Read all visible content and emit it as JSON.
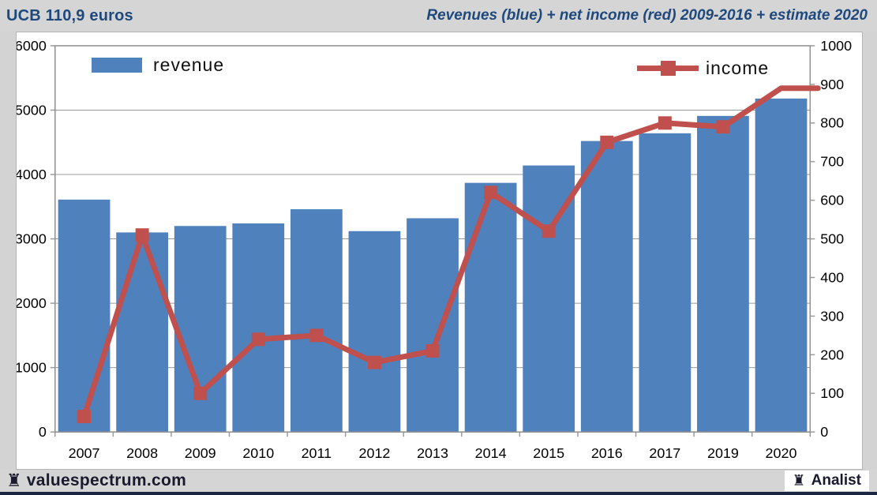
{
  "header": {
    "title": "UCB 110,9 euros",
    "subtitle": "Revenues (blue) + net income (red) 2009-2016 + estimate 2020"
  },
  "legend": {
    "revenue_label": "revenue",
    "income_label": "income"
  },
  "footer": {
    "brand": "valuespectrum.com",
    "badge": "Analist",
    "rook_icon": "♜"
  },
  "colors": {
    "bar": "#4F81BD",
    "line": "#C0504D",
    "header_text": "#1F497D",
    "grid": "#9b9b9b",
    "plot_border": "#8f8f8f",
    "axis_text": "#000000",
    "strip_bg": "#d5d5d5",
    "bottom_bar": "#1b2742"
  },
  "chart_data": {
    "type": "bar+line combo",
    "categories": [
      "2007",
      "2008",
      "2009",
      "2010",
      "2011",
      "2012",
      "2013",
      "2014",
      "2015",
      "2016",
      "2017",
      "2019",
      "2020"
    ],
    "series": [
      {
        "name": "revenue",
        "type": "bar",
        "axis": "left",
        "values": [
          3610,
          3100,
          3200,
          3240,
          3460,
          3120,
          3320,
          3870,
          4140,
          4520,
          4640,
          4910,
          5180
        ]
      },
      {
        "name": "income",
        "type": "line",
        "axis": "right",
        "last_marker_hidden": true,
        "line_extends_past_last_point": true,
        "values": [
          40,
          510,
          100,
          240,
          250,
          180,
          210,
          620,
          520,
          750,
          800,
          790,
          890
        ]
      }
    ],
    "y_left": {
      "min": 0,
      "max": 6000,
      "step": 1000
    },
    "y_right": {
      "min": 0,
      "max": 1000,
      "step": 100
    },
    "grid": true,
    "gridlines": "horizontal, every 1000 on left axis",
    "legend_position": "top inside plot (revenue left, income right)",
    "note": "x axis skips year 2018"
  }
}
